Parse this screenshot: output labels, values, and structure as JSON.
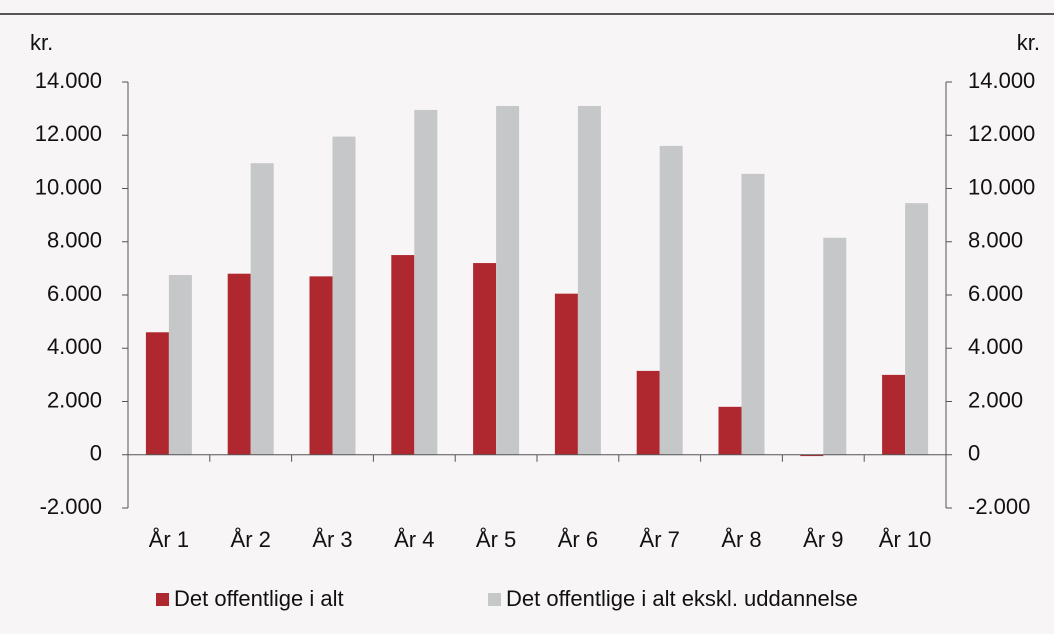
{
  "chart_data": {
    "type": "bar",
    "ylabel": "kr.",
    "y2label": "kr.",
    "categories": [
      "År 1",
      "År 2",
      "År 3",
      "År 4",
      "År 5",
      "År 6",
      "År 7",
      "År 8",
      "År 9",
      "År 10"
    ],
    "series": [
      {
        "name": "Det offentlige i alt",
        "color": "#b0282f",
        "values": [
          4600,
          6800,
          6700,
          7500,
          7200,
          6050,
          3150,
          1800,
          -50,
          3000
        ]
      },
      {
        "name": "Det offentlige i alt ekskl. uddannelse",
        "color": "#c6c7c9",
        "values": [
          6750,
          10950,
          11950,
          12950,
          13100,
          13100,
          11600,
          10550,
          8150,
          9450
        ]
      }
    ],
    "ylim": [
      -2000,
      14000
    ],
    "yticks": [
      {
        "value": -2000,
        "label": "-2.000"
      },
      0,
      {
        "value": 2000,
        "label": "2.000"
      },
      {
        "value": 4000,
        "label": "4.000"
      },
      {
        "value": 6000,
        "label": "6.000"
      },
      {
        "value": 8000,
        "label": "8.000"
      },
      {
        "value": 10000,
        "label": "10.000"
      },
      {
        "value": 12000,
        "label": "12.000"
      },
      {
        "value": 14000,
        "label": "14.000"
      }
    ],
    "y2lim": [
      -2000,
      14000
    ],
    "y2ticks": [
      {
        "value": -2000,
        "label": "-2.000"
      },
      0,
      {
        "value": 2000,
        "label": "2.000"
      },
      {
        "value": 4000,
        "label": "4.000"
      },
      {
        "value": 6000,
        "label": "6.000"
      },
      {
        "value": 8000,
        "label": "8.000"
      },
      {
        "value": 10000,
        "label": "10.000"
      },
      {
        "value": 12000,
        "label": "12.000"
      },
      {
        "value": 14000,
        "label": "14.000"
      }
    ],
    "grid": false
  }
}
